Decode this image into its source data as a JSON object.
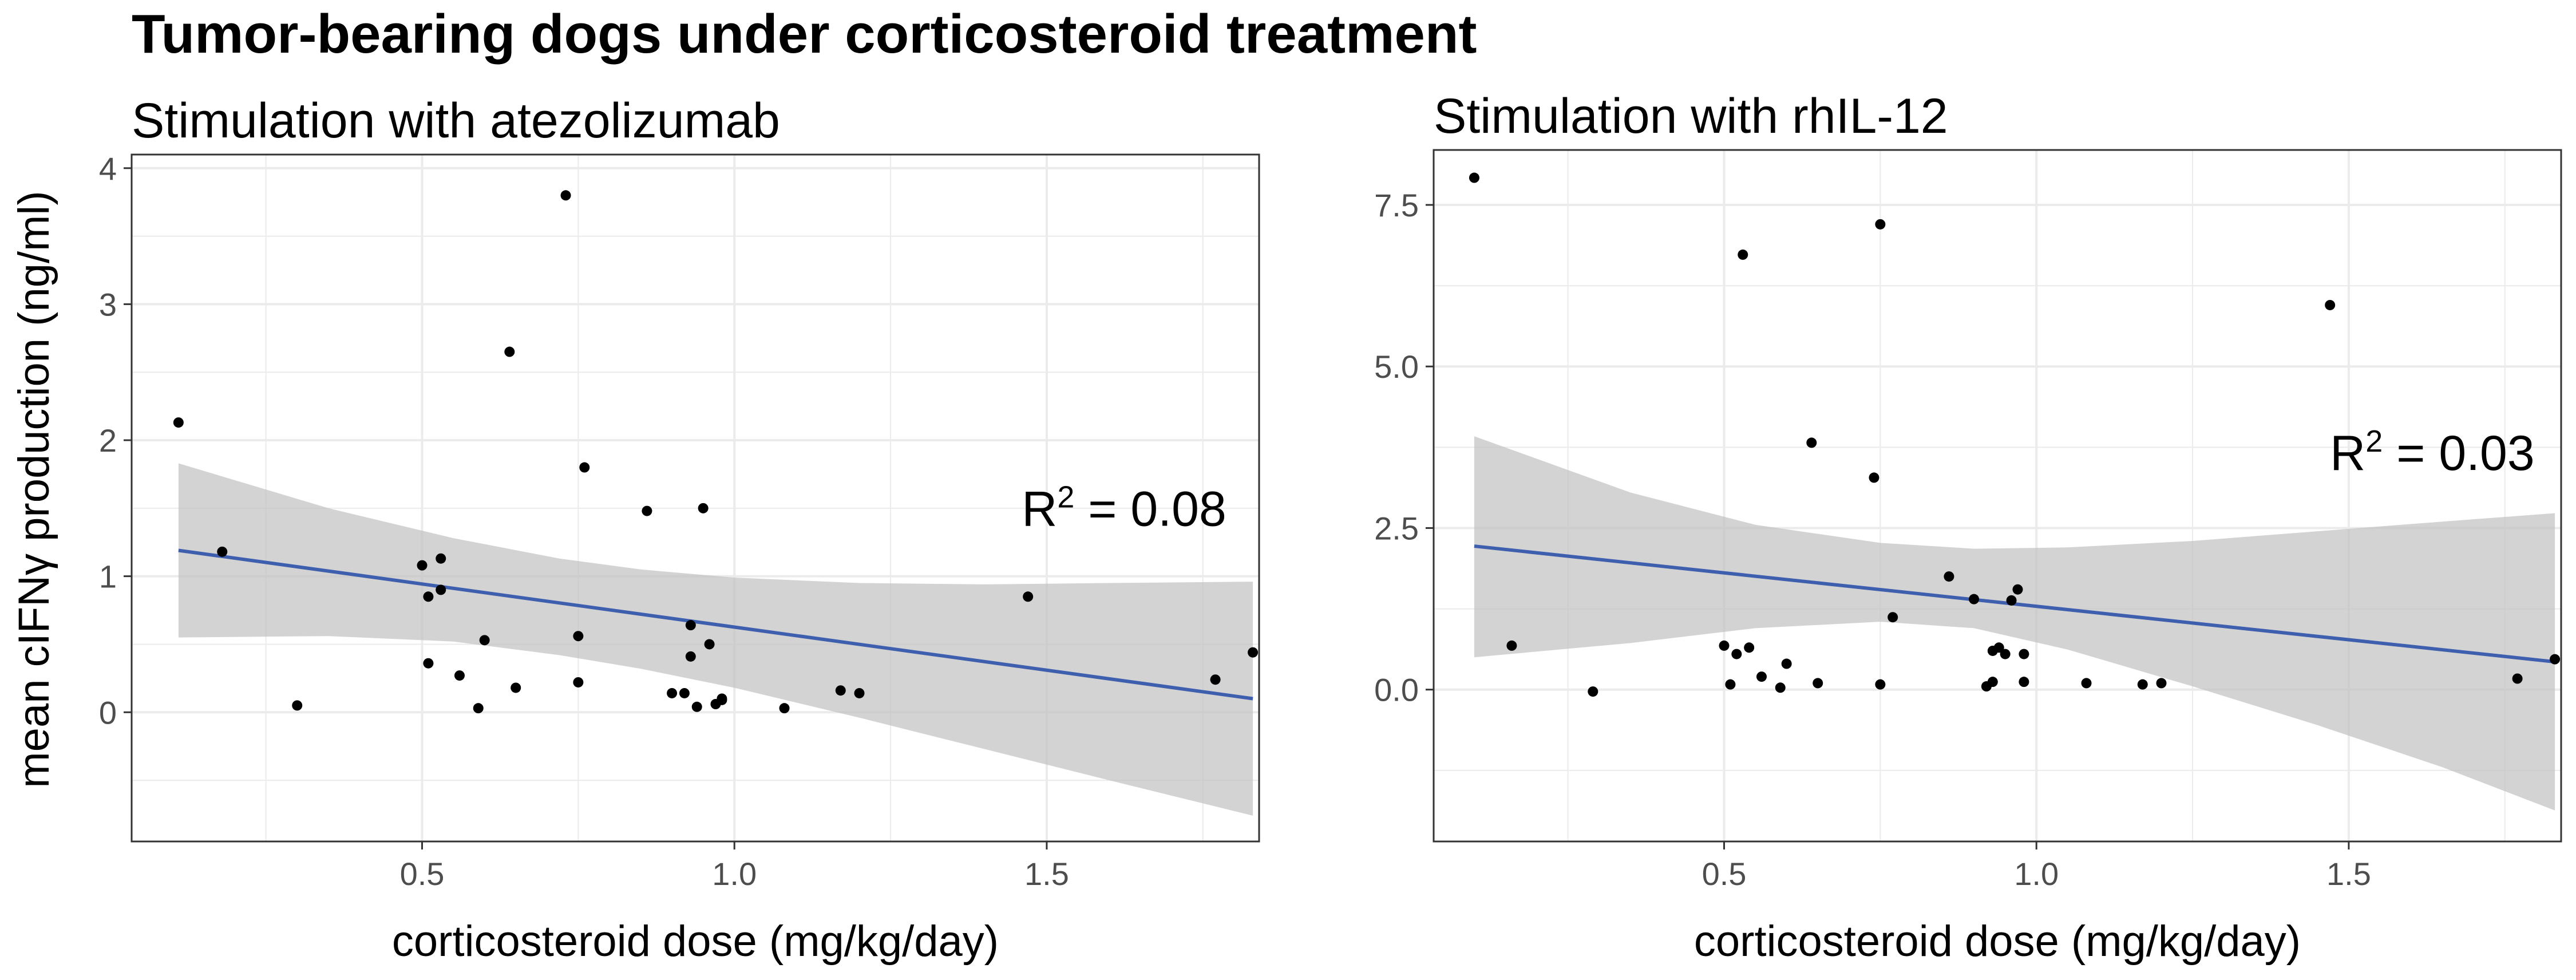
{
  "title": "Tumor-bearing dogs under corticosteroid treatment",
  "ylabel": "mean cIFNγ production (ng/ml)",
  "colors": {
    "background": "#ffffff",
    "grid": "#ebebeb",
    "panel_border": "#333333",
    "point": "#000000",
    "fit_line": "#3d5fad",
    "ci_band": "#bfbebf",
    "tick_text": "#4d4d4d"
  },
  "chart_data": [
    {
      "type": "scatter",
      "title": "Stimulation with atezolizumab",
      "xlabel": "corticosteroid dose (mg/kg/day)",
      "ylabel": "mean cIFNγ production (ng/ml)",
      "xlim": [
        0.035,
        1.84
      ],
      "ylim": [
        -0.95,
        4.1
      ],
      "xticks": [
        0.5,
        1.0,
        1.5
      ],
      "xtick_labels": [
        "0.5",
        "1.0",
        "1.5"
      ],
      "yticks": [
        0,
        1,
        2,
        3,
        4
      ],
      "ytick_labels": [
        "0",
        "1",
        "2",
        "3",
        "4"
      ],
      "annotation": {
        "prefix": "R",
        "sup": "2",
        "suffix": " = 0.08",
        "x": 1.46,
        "y": 1.37
      },
      "fit": {
        "x0": 0.11,
        "y0": 1.19,
        "x1": 1.83,
        "y1": 0.1
      },
      "ci": {
        "x": [
          0.11,
          0.35,
          0.55,
          0.72,
          0.85,
          1.0,
          1.2,
          1.4,
          1.6,
          1.83
        ],
        "upper": [
          1.83,
          1.5,
          1.28,
          1.13,
          1.05,
          0.99,
          0.95,
          0.94,
          0.95,
          0.96
        ],
        "lower": [
          0.55,
          0.56,
          0.52,
          0.42,
          0.32,
          0.18,
          -0.04,
          -0.27,
          -0.5,
          -0.76
        ]
      },
      "points": {
        "x": [
          0.11,
          0.18,
          0.3,
          0.5,
          0.51,
          0.51,
          0.53,
          0.53,
          0.56,
          0.59,
          0.6,
          0.64,
          0.65,
          0.73,
          0.75,
          0.75,
          0.76,
          0.86,
          0.9,
          0.92,
          0.93,
          0.93,
          0.94,
          0.95,
          0.96,
          0.97,
          0.98,
          0.98,
          1.08,
          1.17,
          1.2,
          1.47,
          1.77,
          1.83
        ],
        "y": [
          2.13,
          1.18,
          0.05,
          1.08,
          0.36,
          0.85,
          1.13,
          0.9,
          0.27,
          0.03,
          0.53,
          2.65,
          0.18,
          3.8,
          0.56,
          0.22,
          1.8,
          1.48,
          0.14,
          0.14,
          0.41,
          0.64,
          0.04,
          1.5,
          0.5,
          0.06,
          0.1,
          0.09,
          0.03,
          0.16,
          0.14,
          0.85,
          0.24,
          0.44
        ]
      }
    },
    {
      "type": "scatter",
      "title": "Stimulation with rhIL-12",
      "xlabel": "corticosteroid dose (mg/kg/day)",
      "ylabel": "",
      "xlim": [
        0.035,
        1.84
      ],
      "ylim": [
        -2.35,
        8.35
      ],
      "xticks": [
        0.5,
        1.0,
        1.5
      ],
      "xtick_labels": [
        "0.5",
        "1.0",
        "1.5"
      ],
      "yticks": [
        0.0,
        2.5,
        5.0,
        7.5
      ],
      "ytick_labels": [
        "0.0",
        "2.5",
        "5.0",
        "7.5"
      ],
      "annotation": {
        "prefix": "R",
        "sup": "2",
        "suffix": " = 0.03",
        "x": 1.47,
        "y": 3.4
      },
      "fit": {
        "x0": 0.1,
        "y0": 2.22,
        "x1": 1.83,
        "y1": 0.43
      },
      "ci": {
        "x": [
          0.1,
          0.35,
          0.55,
          0.75,
          0.9,
          1.05,
          1.25,
          1.45,
          1.65,
          1.83
        ],
        "upper": [
          3.92,
          3.05,
          2.55,
          2.27,
          2.18,
          2.2,
          2.3,
          2.45,
          2.6,
          2.73
        ],
        "lower": [
          0.5,
          0.72,
          0.95,
          1.05,
          0.95,
          0.62,
          0.05,
          -0.55,
          -1.2,
          -1.87
        ]
      },
      "points": {
        "x": [
          0.1,
          0.16,
          0.29,
          0.5,
          0.51,
          0.52,
          0.53,
          0.54,
          0.56,
          0.59,
          0.6,
          0.64,
          0.65,
          0.74,
          0.75,
          0.75,
          0.77,
          0.86,
          0.9,
          0.92,
          0.93,
          0.93,
          0.94,
          0.95,
          0.96,
          0.97,
          0.98,
          0.98,
          1.08,
          1.17,
          1.2,
          1.47,
          1.77,
          1.83
        ],
        "y": [
          7.92,
          0.68,
          -0.03,
          0.68,
          0.08,
          0.55,
          6.73,
          0.65,
          0.2,
          0.03,
          0.4,
          3.82,
          0.1,
          3.28,
          7.2,
          0.08,
          1.12,
          1.75,
          1.4,
          0.05,
          0.12,
          0.6,
          0.65,
          0.55,
          1.38,
          1.55,
          0.12,
          0.55,
          0.1,
          0.08,
          0.1,
          5.95,
          0.17,
          0.47
        ]
      }
    }
  ]
}
